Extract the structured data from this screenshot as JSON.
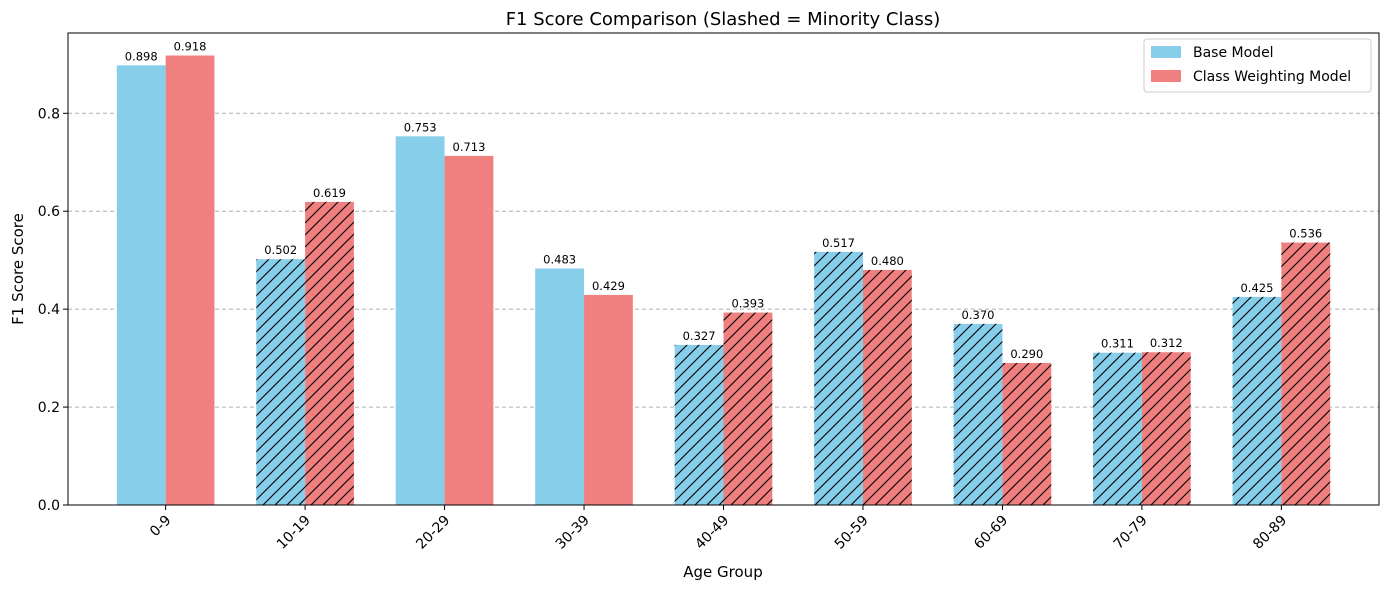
{
  "chart_data": {
    "type": "bar",
    "title": "F1 Score Comparison (Slashed = Minority Class)",
    "xlabel": "Age Group",
    "ylabel": "F1 Score Score",
    "categories": [
      "0-9",
      "10-19",
      "20-29",
      "30-39",
      "40-49",
      "50-59",
      "60-69",
      "70-79",
      "80-89"
    ],
    "minority_categories": [
      "10-19",
      "40-49",
      "50-59",
      "60-69",
      "70-79",
      "80-89"
    ],
    "series": [
      {
        "name": "Base Model",
        "color": "#87ceeb",
        "values": [
          0.898,
          0.502,
          0.753,
          0.483,
          0.327,
          0.517,
          0.37,
          0.311,
          0.425
        ],
        "labels": [
          "0.898",
          "0.502",
          "0.753",
          "0.483",
          "0.327",
          "0.517",
          "0.370",
          "0.311",
          "0.425"
        ]
      },
      {
        "name": "Class Weighting Model",
        "color": "#f08080",
        "values": [
          0.918,
          0.619,
          0.713,
          0.429,
          0.393,
          0.48,
          0.29,
          0.312,
          0.536
        ],
        "labels": [
          "0.918",
          "0.619",
          "0.713",
          "0.429",
          "0.393",
          "0.480",
          "0.290",
          "0.312",
          "0.536"
        ]
      }
    ],
    "ylim": [
      0,
      0.964
    ],
    "yticks": [
      0.0,
      0.2,
      0.4,
      0.6,
      0.8
    ],
    "ytick_labels": [
      "0.0",
      "0.2",
      "0.4",
      "0.6",
      "0.8"
    ],
    "grid": "y-dashed",
    "legend_position": "top-right",
    "tick_rotation": 45
  }
}
